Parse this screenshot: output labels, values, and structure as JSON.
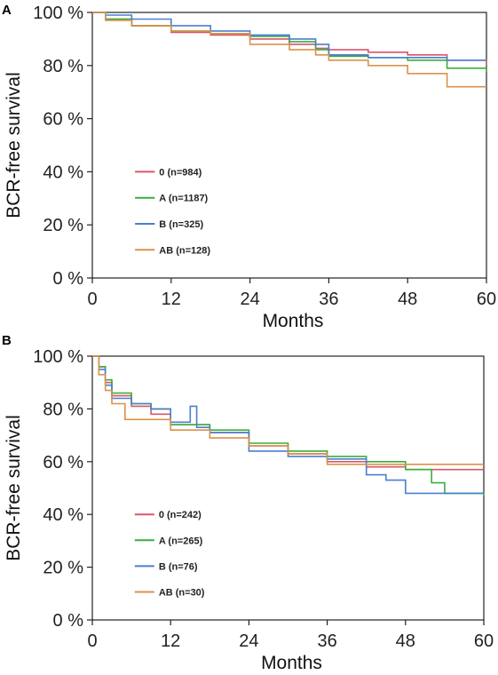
{
  "chart_data": [
    {
      "panel_label": "A",
      "type": "line",
      "xlabel": "Months",
      "ylabel": "BCR-free survival",
      "xlim": [
        0,
        60
      ],
      "ylim": [
        0,
        100
      ],
      "x_ticks": [
        0,
        12,
        24,
        36,
        48,
        60
      ],
      "y_ticks": [
        0,
        20,
        40,
        60,
        80,
        100
      ],
      "y_tick_labels": [
        "0 %",
        "20 %",
        "40 %",
        "60 %",
        "80 %",
        "100 %"
      ],
      "legend_position": "center-left",
      "series": [
        {
          "name": "0 (n=984)",
          "color": "#d9566b",
          "x": [
            0,
            2,
            6,
            12,
            18,
            24,
            30,
            34,
            36,
            42,
            48,
            54,
            60
          ],
          "y": [
            100,
            97.5,
            95,
            92.5,
            91.5,
            90,
            88,
            86.5,
            86,
            85,
            84,
            82,
            80
          ]
        },
        {
          "name": "A (n=1187)",
          "color": "#3aad3a",
          "x": [
            0,
            2,
            6,
            12,
            18,
            24,
            30,
            34,
            36,
            42,
            48,
            54,
            60
          ],
          "y": [
            100,
            97.5,
            95,
            93,
            92,
            91,
            89,
            86,
            83.5,
            83,
            82,
            79,
            77.5
          ]
        },
        {
          "name": "B (n=325)",
          "color": "#4a7fd0",
          "x": [
            0,
            2,
            6,
            12,
            18,
            24,
            30,
            34,
            36,
            42,
            48,
            54,
            60
          ],
          "y": [
            100,
            99,
            97.5,
            95,
            93,
            91.5,
            90,
            88,
            84,
            83,
            83,
            82,
            82
          ]
        },
        {
          "name": "AB (n=128)",
          "color": "#d9924a",
          "x": [
            0,
            2,
            6,
            12,
            18,
            24,
            30,
            34,
            36,
            42,
            48,
            54,
            60
          ],
          "y": [
            100,
            97,
            95,
            93,
            92,
            88,
            86,
            84,
            82,
            80,
            77,
            72,
            72
          ]
        }
      ]
    },
    {
      "panel_label": "B",
      "type": "line",
      "xlabel": "Months",
      "ylabel": "BCR-free survival",
      "xlim": [
        0,
        60
      ],
      "ylim": [
        0,
        100
      ],
      "x_ticks": [
        0,
        12,
        24,
        36,
        48,
        60
      ],
      "y_ticks": [
        0,
        20,
        40,
        60,
        80,
        100
      ],
      "y_tick_labels": [
        "0 %",
        "20 %",
        "40 %",
        "60 %",
        "80 %",
        "100 %"
      ],
      "legend_position": "center-left",
      "series": [
        {
          "name": "0 (n=242)",
          "color": "#d9566b",
          "x": [
            0,
            1,
            2,
            3,
            6,
            9,
            12,
            18,
            24,
            30,
            36,
            42,
            48,
            54,
            60
          ],
          "y": [
            100,
            96,
            90,
            85,
            81,
            78,
            74,
            71,
            66,
            63,
            60,
            58,
            57,
            57,
            57
          ]
        },
        {
          "name": "A (n=265)",
          "color": "#3aad3a",
          "x": [
            0,
            1,
            2,
            3,
            6,
            9,
            12,
            18,
            24,
            30,
            36,
            42,
            48,
            52,
            54,
            60
          ],
          "y": [
            100,
            96,
            91,
            86,
            82,
            80,
            74,
            72,
            67,
            64,
            62,
            60,
            57,
            52,
            48,
            47
          ]
        },
        {
          "name": "B (n=76)",
          "color": "#4a7fd0",
          "x": [
            0,
            1,
            2,
            3,
            6,
            9,
            12,
            15,
            16,
            18,
            24,
            30,
            36,
            42,
            45,
            48,
            54,
            60
          ],
          "y": [
            100,
            95,
            89,
            84,
            82,
            80,
            75,
            81,
            73,
            71,
            64,
            62,
            61,
            55,
            53,
            48,
            48,
            48
          ]
        },
        {
          "name": "AB (n=30)",
          "color": "#d9924a",
          "x": [
            0,
            1,
            2,
            3,
            5,
            9,
            12,
            18,
            24,
            30,
            36,
            42,
            48,
            54,
            60
          ],
          "y": [
            100,
            93,
            87,
            82,
            76,
            76,
            72,
            69,
            66,
            63,
            59,
            59,
            59,
            59,
            59
          ]
        }
      ]
    }
  ]
}
